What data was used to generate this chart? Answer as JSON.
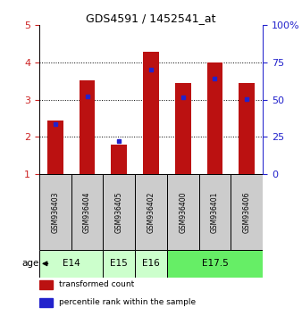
{
  "title": "GDS4591 / 1452541_at",
  "samples": [
    "GSM936403",
    "GSM936404",
    "GSM936405",
    "GSM936402",
    "GSM936400",
    "GSM936401",
    "GSM936406"
  ],
  "red_values": [
    2.45,
    3.52,
    1.8,
    4.3,
    3.45,
    4.0,
    3.45
  ],
  "blue_values": [
    2.35,
    3.08,
    1.9,
    3.82,
    3.07,
    3.58,
    3.02
  ],
  "ylim": [
    1,
    5
  ],
  "yticks_left": [
    1,
    2,
    3,
    4,
    5
  ],
  "yticks_right": [
    0,
    25,
    50,
    75,
    100
  ],
  "right_ylim": [
    0,
    100
  ],
  "age_groups": [
    {
      "label": "E14",
      "start": 0,
      "end": 2,
      "color": "#ccffcc"
    },
    {
      "label": "E15",
      "start": 2,
      "end": 3,
      "color": "#ccffcc"
    },
    {
      "label": "E16",
      "start": 3,
      "end": 4,
      "color": "#ccffcc"
    },
    {
      "label": "E17.5",
      "start": 4,
      "end": 7,
      "color": "#66ee66"
    }
  ],
  "bar_color": "#bb1111",
  "marker_color": "#2222cc",
  "background_color": "#ffffff",
  "sample_bg_color": "#cccccc",
  "title_color": "#000000",
  "left_axis_color": "#cc2222",
  "right_axis_color": "#2222cc",
  "bar_width": 0.5,
  "legend_items": [
    {
      "color": "#bb1111",
      "label": "transformed count"
    },
    {
      "color": "#2222cc",
      "label": "percentile rank within the sample"
    }
  ]
}
